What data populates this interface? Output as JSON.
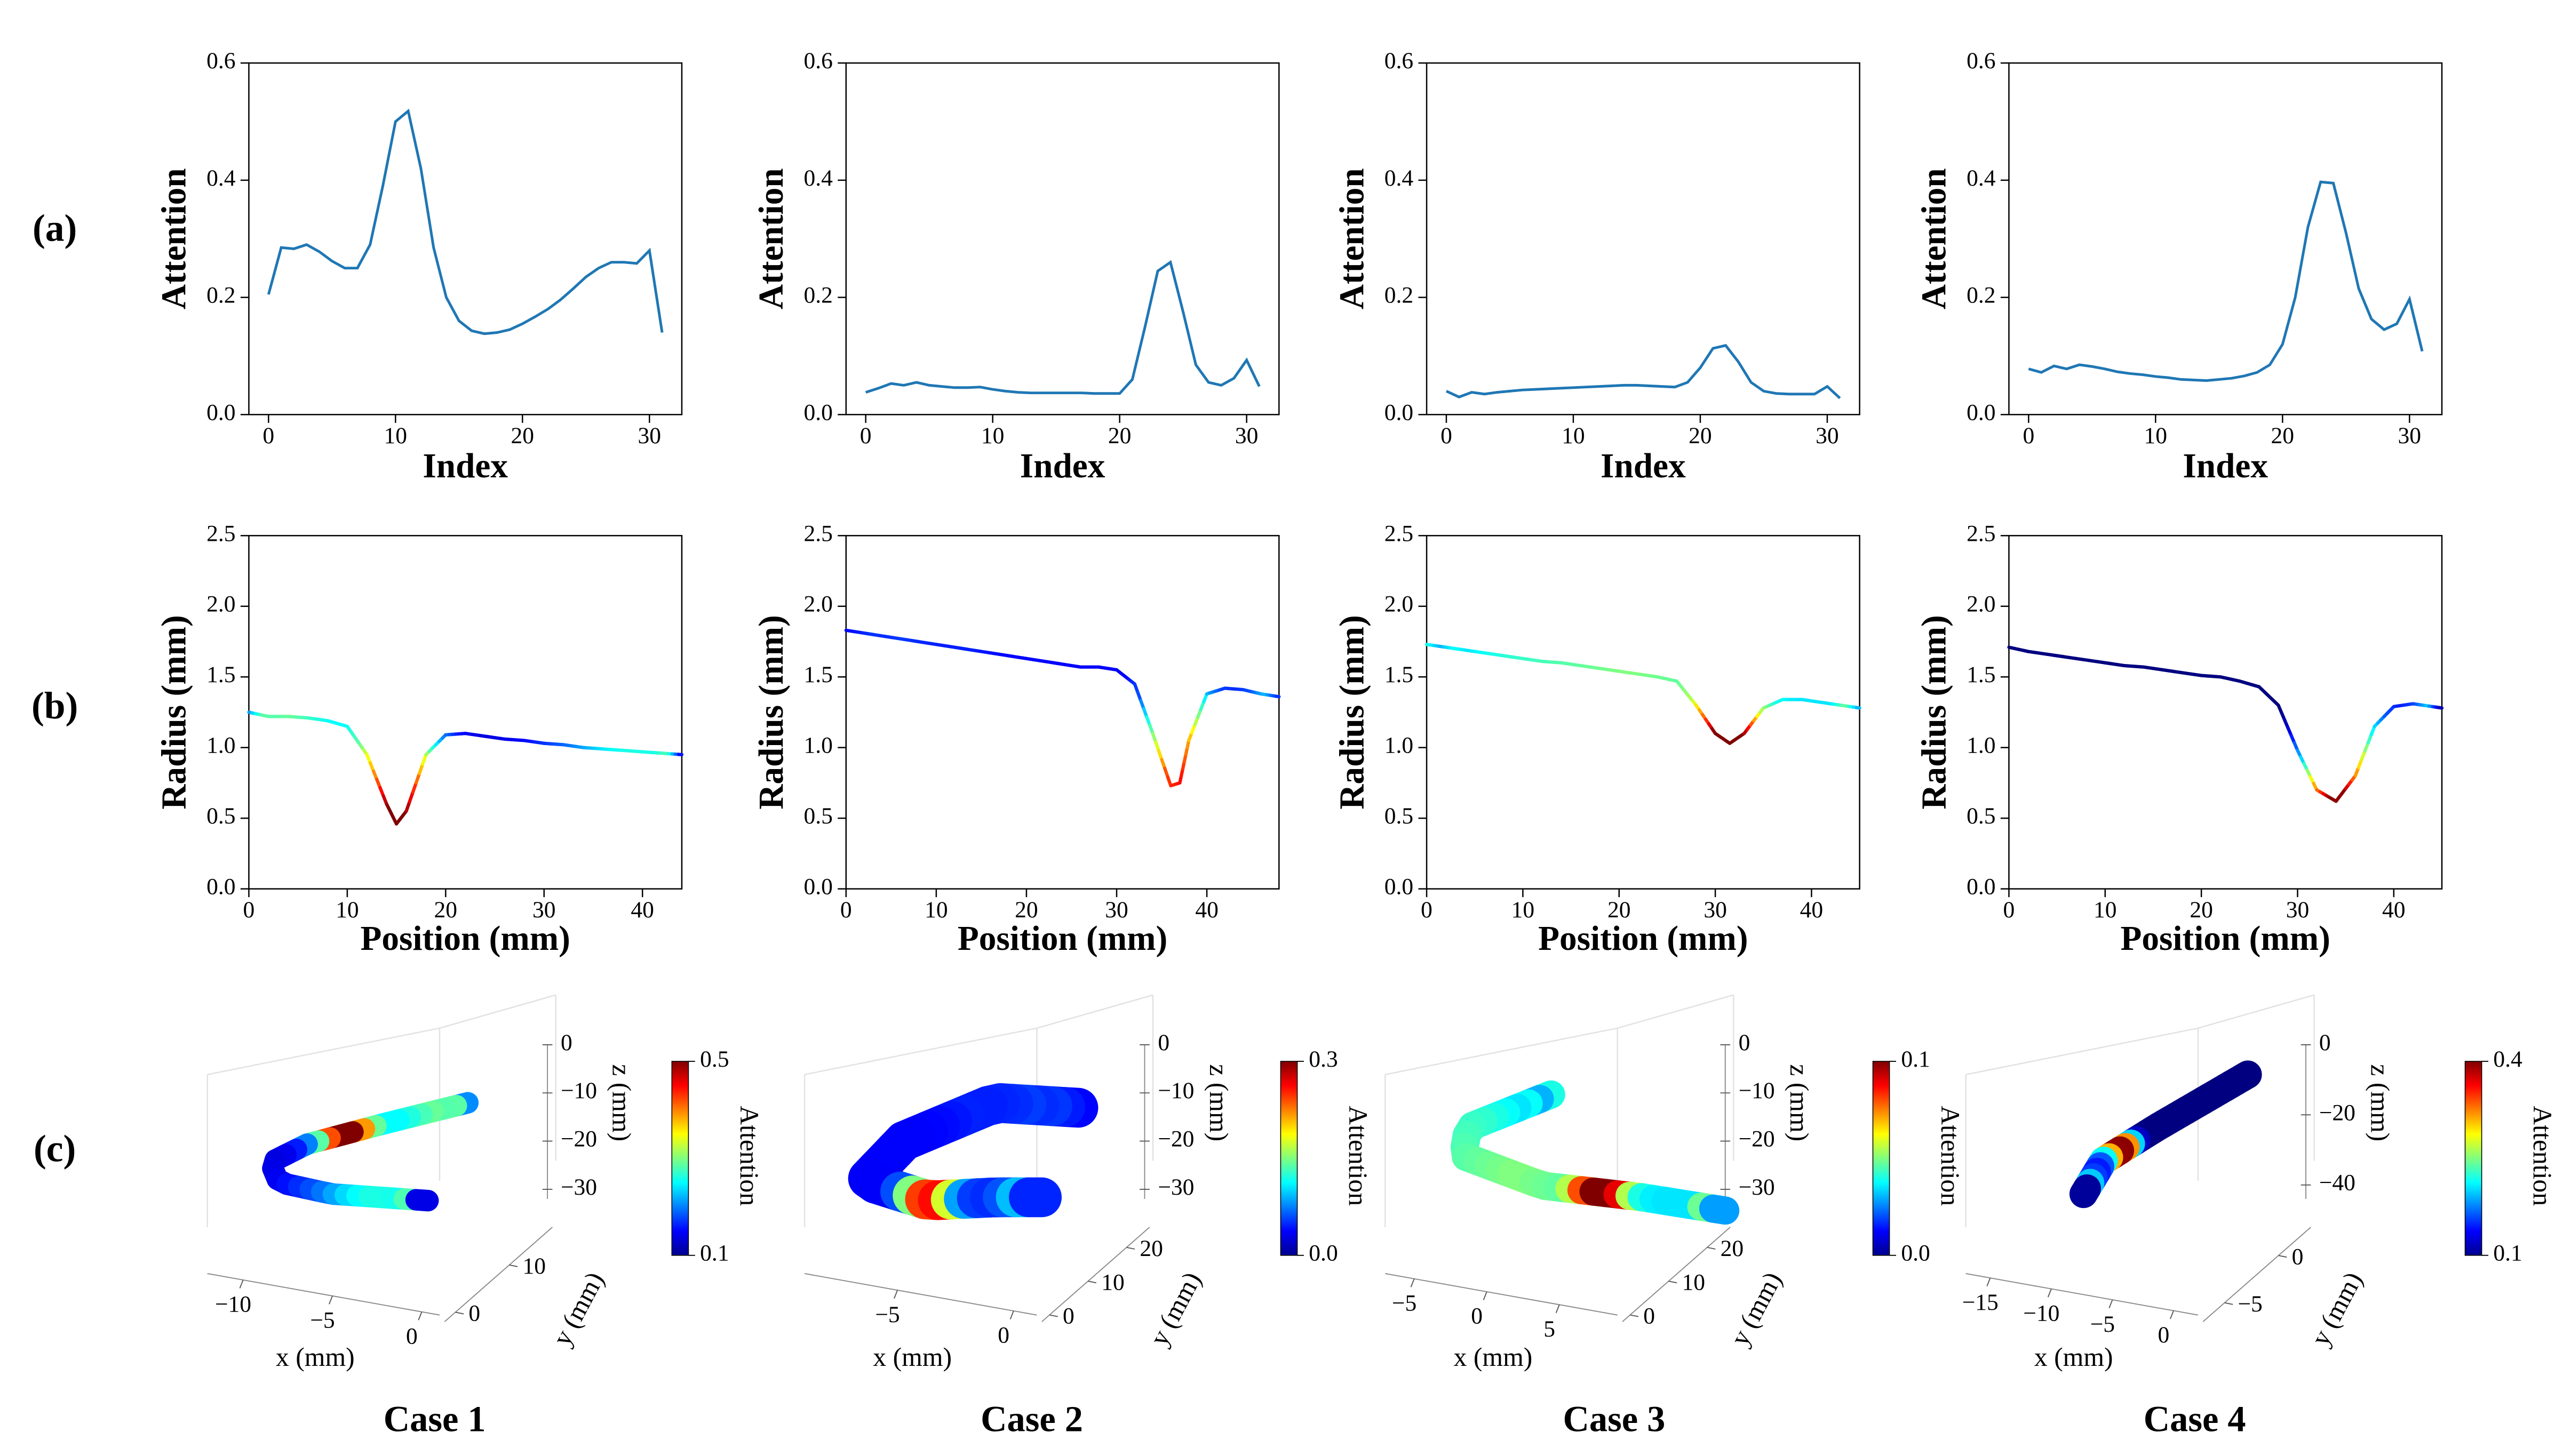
{
  "panel_labels": [
    "(a)",
    "(b)",
    "(c)"
  ],
  "chart_data": [
    {
      "type": "line",
      "xlabel": "Index",
      "ylabel": "Attention",
      "color": "#1f77b4",
      "x": [
        0,
        1,
        2,
        3,
        4,
        5,
        6,
        7,
        8,
        9,
        10,
        11,
        12,
        13,
        14,
        15,
        16,
        17,
        18,
        19,
        20,
        21,
        22,
        23,
        24,
        25,
        26,
        27,
        28,
        29,
        30,
        31
      ],
      "values": [
        0.205,
        0.285,
        0.283,
        0.29,
        0.278,
        0.262,
        0.25,
        0.25,
        0.29,
        0.39,
        0.5,
        0.518,
        0.42,
        0.285,
        0.2,
        0.16,
        0.143,
        0.138,
        0.14,
        0.145,
        0.155,
        0.167,
        0.18,
        0.196,
        0.215,
        0.235,
        0.25,
        0.26,
        0.26,
        0.258,
        0.28,
        0.14
      ],
      "xlim": [
        -1.55,
        32.55
      ],
      "ylim": [
        0,
        0.6
      ],
      "xticks": [
        0,
        10,
        20,
        30
      ],
      "yticks": [
        {
          "value": 0,
          "label": "0.0"
        },
        0.2,
        0.4,
        0.6
      ]
    },
    {
      "type": "line",
      "xlabel": "Index",
      "ylabel": "Attention",
      "color": "#1f77b4",
      "x": [
        0,
        1,
        2,
        3,
        4,
        5,
        6,
        7,
        8,
        9,
        10,
        11,
        12,
        13,
        14,
        15,
        16,
        17,
        18,
        19,
        20,
        21,
        22,
        23,
        24,
        25,
        26,
        27,
        28,
        29,
        30,
        31
      ],
      "values": [
        0.038,
        0.045,
        0.053,
        0.05,
        0.055,
        0.05,
        0.048,
        0.046,
        0.046,
        0.047,
        0.043,
        0.04,
        0.038,
        0.037,
        0.037,
        0.037,
        0.037,
        0.037,
        0.036,
        0.036,
        0.036,
        0.06,
        0.15,
        0.245,
        0.26,
        0.175,
        0.085,
        0.055,
        0.05,
        0.062,
        0.093,
        0.048
      ],
      "xlim": [
        -1.55,
        32.55
      ],
      "ylim": [
        0,
        0.6
      ],
      "xticks": [
        0,
        10,
        20,
        30
      ],
      "yticks": [
        {
          "value": 0,
          "label": "0.0"
        },
        0.2,
        0.4,
        0.6
      ]
    },
    {
      "type": "line",
      "xlabel": "Index",
      "ylabel": "Attention",
      "color": "#1f77b4",
      "x": [
        0,
        1,
        2,
        3,
        4,
        5,
        6,
        7,
        8,
        9,
        10,
        11,
        12,
        13,
        14,
        15,
        16,
        17,
        18,
        19,
        20,
        21,
        22,
        23,
        24,
        25,
        26,
        27,
        28,
        29,
        30,
        31
      ],
      "values": [
        0.04,
        0.03,
        0.038,
        0.035,
        0.038,
        0.04,
        0.042,
        0.043,
        0.044,
        0.045,
        0.046,
        0.047,
        0.048,
        0.049,
        0.05,
        0.05,
        0.049,
        0.048,
        0.047,
        0.055,
        0.08,
        0.113,
        0.118,
        0.09,
        0.055,
        0.04,
        0.036,
        0.035,
        0.035,
        0.035,
        0.048,
        0.028
      ],
      "xlim": [
        -1.55,
        32.55
      ],
      "ylim": [
        0,
        0.6
      ],
      "xticks": [
        0,
        10,
        20,
        30
      ],
      "yticks": [
        {
          "value": 0,
          "label": "0.0"
        },
        0.2,
        0.4,
        0.6
      ]
    },
    {
      "type": "line",
      "xlabel": "Index",
      "ylabel": "Attention",
      "color": "#1f77b4",
      "x": [
        0,
        1,
        2,
        3,
        4,
        5,
        6,
        7,
        8,
        9,
        10,
        11,
        12,
        13,
        14,
        15,
        16,
        17,
        18,
        19,
        20,
        21,
        22,
        23,
        24,
        25,
        26,
        27,
        28,
        29,
        30,
        31
      ],
      "values": [
        0.078,
        0.072,
        0.083,
        0.078,
        0.085,
        0.082,
        0.078,
        0.073,
        0.07,
        0.068,
        0.065,
        0.063,
        0.06,
        0.059,
        0.058,
        0.06,
        0.062,
        0.066,
        0.072,
        0.085,
        0.12,
        0.2,
        0.32,
        0.397,
        0.395,
        0.31,
        0.215,
        0.163,
        0.145,
        0.155,
        0.197,
        0.108
      ],
      "xlim": [
        -1.55,
        32.55
      ],
      "ylim": [
        0,
        0.6
      ],
      "xticks": [
        0,
        10,
        20,
        30
      ],
      "yticks": [
        {
          "value": 0,
          "label": "0.0"
        },
        0.2,
        0.4,
        0.6
      ]
    },
    {
      "type": "line",
      "colormap": "jet",
      "xlabel": "Position (mm)",
      "ylabel": "Radius (mm)",
      "x": [
        0,
        2,
        4,
        6,
        8,
        10,
        12,
        14,
        15,
        16,
        18,
        20,
        22,
        24,
        26,
        28,
        30,
        32,
        34,
        36,
        38,
        40,
        42,
        44
      ],
      "values": [
        1.25,
        1.22,
        1.22,
        1.21,
        1.19,
        1.15,
        0.95,
        0.6,
        0.46,
        0.55,
        0.95,
        1.09,
        1.1,
        1.08,
        1.06,
        1.05,
        1.03,
        1.02,
        1.0,
        0.99,
        0.98,
        0.97,
        0.96,
        0.95
      ],
      "xlim": [
        0,
        44
      ],
      "ylim": [
        0,
        2.5
      ],
      "xticks": [
        0,
        10,
        20,
        30,
        40
      ],
      "yticks": [
        {
          "value": 0,
          "label": "0.0"
        },
        0.5,
        {
          "value": 1,
          "label": "1.0"
        },
        1.5,
        {
          "value": 2,
          "label": "2.0"
        },
        2.5
      ]
    },
    {
      "type": "line",
      "colormap": "jet",
      "xlabel": "Position (mm)",
      "ylabel": "Radius (mm)",
      "x": [
        0,
        2,
        4,
        6,
        8,
        10,
        12,
        14,
        16,
        18,
        20,
        22,
        24,
        26,
        28,
        30,
        32,
        34,
        36,
        37,
        38,
        40,
        42,
        44,
        46,
        48
      ],
      "values": [
        1.83,
        1.81,
        1.79,
        1.77,
        1.75,
        1.73,
        1.71,
        1.69,
        1.67,
        1.65,
        1.63,
        1.61,
        1.59,
        1.57,
        1.57,
        1.55,
        1.45,
        1.1,
        0.73,
        0.75,
        1.05,
        1.38,
        1.42,
        1.41,
        1.38,
        1.36
      ],
      "xlim": [
        0,
        48
      ],
      "ylim": [
        0,
        2.5
      ],
      "xticks": [
        0,
        10,
        20,
        30,
        40
      ],
      "yticks": [
        {
          "value": 0,
          "label": "0.0"
        },
        0.5,
        {
          "value": 1,
          "label": "1.0"
        },
        1.5,
        {
          "value": 2,
          "label": "2.0"
        },
        2.5
      ]
    },
    {
      "type": "line",
      "colormap": "jet",
      "xlabel": "Position (mm)",
      "ylabel": "Radius (mm)",
      "x": [
        0,
        2,
        4,
        6,
        8,
        10,
        12,
        14,
        16,
        18,
        20,
        22,
        24,
        26,
        28,
        30,
        31.5,
        33,
        35,
        37,
        39,
        41,
        43,
        45
      ],
      "values": [
        1.73,
        1.71,
        1.69,
        1.67,
        1.65,
        1.63,
        1.61,
        1.6,
        1.58,
        1.56,
        1.54,
        1.52,
        1.5,
        1.47,
        1.3,
        1.1,
        1.03,
        1.1,
        1.28,
        1.34,
        1.34,
        1.32,
        1.3,
        1.28
      ],
      "xlim": [
        0,
        45
      ],
      "ylim": [
        0,
        2.5
      ],
      "xticks": [
        0,
        10,
        20,
        30,
        40
      ],
      "yticks": [
        {
          "value": 0,
          "label": "0.0"
        },
        0.5,
        {
          "value": 1,
          "label": "1.0"
        },
        1.5,
        {
          "value": 2,
          "label": "2.0"
        },
        2.5
      ]
    },
    {
      "type": "line",
      "colormap": "jet",
      "xlabel": "Position (mm)",
      "ylabel": "Radius (mm)",
      "x": [
        0,
        2,
        4,
        6,
        8,
        10,
        12,
        14,
        16,
        18,
        20,
        22,
        24,
        26,
        28,
        30,
        32,
        34,
        36,
        38,
        40,
        42,
        44,
        45
      ],
      "values": [
        1.71,
        1.68,
        1.66,
        1.64,
        1.62,
        1.6,
        1.58,
        1.57,
        1.55,
        1.53,
        1.51,
        1.5,
        1.47,
        1.43,
        1.3,
        0.98,
        0.7,
        0.62,
        0.8,
        1.15,
        1.29,
        1.31,
        1.29,
        1.28
      ],
      "xlim": [
        0,
        45
      ],
      "ylim": [
        0,
        2.5
      ],
      "xticks": [
        0,
        10,
        20,
        30,
        40
      ],
      "yticks": [
        {
          "value": 0,
          "label": "0.0"
        },
        0.5,
        {
          "value": 1,
          "label": "1.0"
        },
        1.5,
        {
          "value": 2,
          "label": "2.0"
        },
        2.5
      ]
    },
    {
      "type": "surface3d",
      "title": "Case 1",
      "colormap": "jet",
      "xlabel": "x (mm)",
      "ylabel": "y (mm)",
      "zlabel": "z (mm)",
      "colorbar_label": "Attention",
      "xlim": [
        -12,
        1
      ],
      "xticks": [
        {
          "value": -10,
          "label": "−10"
        },
        {
          "value": -5,
          "label": "−5"
        },
        0
      ],
      "ylim": [
        -2,
        18
      ],
      "yticks": [
        0,
        10
      ],
      "zlim": [
        -32,
        0
      ],
      "zticks": [
        0,
        {
          "value": -10,
          "label": "−10"
        },
        {
          "value": -20,
          "label": "−20"
        },
        {
          "value": -30,
          "label": "−30"
        }
      ],
      "clim": [
        0.1,
        0.5
      ],
      "cticks": [
        0.1,
        0.5
      ]
    },
    {
      "type": "surface3d",
      "title": "Case 2",
      "colormap": "jet",
      "xlabel": "x (mm)",
      "ylabel": "y (mm)",
      "zlabel": "z (mm)",
      "colorbar_label": "Attention",
      "xlim": [
        -9,
        1
      ],
      "xticks": [
        {
          "value": -5,
          "label": "−5"
        },
        0
      ],
      "ylim": [
        -2,
        26
      ],
      "yticks": [
        0,
        10,
        20
      ],
      "zlim": [
        -32,
        0
      ],
      "zticks": [
        0,
        {
          "value": -10,
          "label": "−10"
        },
        {
          "value": -20,
          "label": "−20"
        },
        {
          "value": -30,
          "label": "−30"
        }
      ],
      "clim": [
        0,
        0.3
      ],
      "cticks": [
        {
          "value": 0,
          "label": "0.0"
        },
        0.3
      ]
    },
    {
      "type": "surface3d",
      "title": "Case 3",
      "colormap": "jet",
      "xlabel": "x (mm)",
      "ylabel": "y (mm)",
      "zlabel": "z (mm)",
      "colorbar_label": "Attention",
      "xlim": [
        -7,
        9
      ],
      "xticks": [
        {
          "value": -5,
          "label": "−5"
        },
        0,
        5
      ],
      "ylim": [
        -2,
        26
      ],
      "yticks": [
        0,
        10,
        20
      ],
      "zlim": [
        -32,
        0
      ],
      "zticks": [
        0,
        {
          "value": -10,
          "label": "−10"
        },
        {
          "value": -20,
          "label": "−20"
        },
        {
          "value": -30,
          "label": "−30"
        }
      ],
      "clim": [
        0,
        0.1
      ],
      "cticks": [
        {
          "value": 0,
          "label": "0.0"
        },
        0.1
      ]
    },
    {
      "type": "surface3d",
      "title": "Case 4",
      "colormap": "jet",
      "xlabel": "x (mm)",
      "ylabel": "y (mm)",
      "zlabel": "z (mm)",
      "colorbar_label": "Attention",
      "xlim": [
        -17,
        2
      ],
      "xticks": [
        {
          "value": -15,
          "label": "−15"
        },
        {
          "value": -10,
          "label": "−10"
        },
        {
          "value": -5,
          "label": "−5"
        },
        0
      ],
      "ylim": [
        -7,
        3
      ],
      "yticks": [
        {
          "value": -5,
          "label": "−5"
        },
        0
      ],
      "zlim": [
        -44,
        0
      ],
      "zticks": [
        0,
        {
          "value": -20,
          "label": "−20"
        },
        {
          "value": -40,
          "label": "−40"
        }
      ],
      "clim": [
        0.1,
        0.4
      ],
      "cticks": [
        0.1,
        0.4
      ]
    }
  ]
}
